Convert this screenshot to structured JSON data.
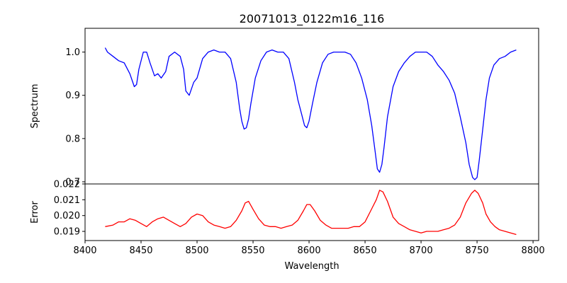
{
  "title": "20071013_0122m16_116",
  "xlabel": "Wavelength",
  "colors": {
    "spectrum": "#0000ff",
    "error": "#ff0000",
    "axes": "#000000",
    "background": "#ffffff"
  },
  "chart_data": [
    {
      "type": "line",
      "panel": "top",
      "title": "20071013_0122m16_116",
      "xlabel": "",
      "ylabel": "Spectrum",
      "xlim": [
        8400,
        8805
      ],
      "ylim": [
        0.695,
        1.055
      ],
      "yticks": [
        0.7,
        0.8,
        0.9,
        1.0
      ],
      "ytick_labels": [
        "0.7",
        "0.8",
        "0.9",
        "1.0"
      ],
      "grid": false,
      "series": [
        {
          "color": "#0000ff",
          "x": [
            8418,
            8420,
            8425,
            8430,
            8435,
            8440,
            8444,
            8446,
            8448,
            8452,
            8455,
            8458,
            8462,
            8465,
            8468,
            8472,
            8475,
            8480,
            8485,
            8488,
            8490,
            8493,
            8497,
            8500,
            8505,
            8510,
            8515,
            8520,
            8525,
            8530,
            8535,
            8538,
            8540,
            8542,
            8544,
            8546,
            8548,
            8552,
            8557,
            8562,
            8567,
            8572,
            8577,
            8582,
            8587,
            8590,
            8593,
            8596,
            8598,
            8600,
            8603,
            8607,
            8612,
            8617,
            8622,
            8627,
            8632,
            8637,
            8642,
            8647,
            8652,
            8656,
            8659,
            8661,
            8663,
            8665,
            8667,
            8670,
            8675,
            8680,
            8685,
            8690,
            8695,
            8700,
            8705,
            8710,
            8715,
            8720,
            8725,
            8730,
            8735,
            8740,
            8743,
            8746,
            8748,
            8750,
            8752,
            8755,
            8758,
            8761,
            8765,
            8770,
            8775,
            8780,
            8785
          ],
          "y": [
            1.01,
            1.0,
            0.99,
            0.98,
            0.975,
            0.95,
            0.92,
            0.925,
            0.96,
            1.0,
            1.0,
            0.975,
            0.945,
            0.95,
            0.94,
            0.955,
            0.99,
            1.0,
            0.99,
            0.96,
            0.91,
            0.9,
            0.93,
            0.94,
            0.985,
            1.0,
            1.005,
            1.0,
            1.0,
            0.985,
            0.93,
            0.87,
            0.84,
            0.822,
            0.825,
            0.845,
            0.88,
            0.94,
            0.98,
            1.0,
            1.005,
            1.0,
            1.0,
            0.985,
            0.93,
            0.89,
            0.86,
            0.83,
            0.825,
            0.84,
            0.88,
            0.93,
            0.975,
            0.995,
            1.0,
            1.0,
            1.0,
            0.995,
            0.975,
            0.94,
            0.89,
            0.83,
            0.77,
            0.73,
            0.722,
            0.74,
            0.78,
            0.85,
            0.92,
            0.955,
            0.975,
            0.99,
            1.0,
            1.0,
            1.0,
            0.99,
            0.97,
            0.955,
            0.935,
            0.905,
            0.85,
            0.79,
            0.74,
            0.71,
            0.705,
            0.71,
            0.75,
            0.82,
            0.89,
            0.94,
            0.97,
            0.985,
            0.99,
            1.0,
            1.005
          ]
        }
      ]
    },
    {
      "type": "line",
      "panel": "bottom",
      "title": "",
      "xlabel": "Wavelength",
      "ylabel": "Error",
      "xlim": [
        8400,
        8805
      ],
      "ylim": [
        0.01842,
        0.022
      ],
      "yticks": [
        0.019,
        0.02,
        0.021,
        0.022
      ],
      "ytick_labels": [
        "0.019",
        "0.020",
        "0.021",
        "0.022"
      ],
      "xticks": [
        8400,
        8450,
        8500,
        8550,
        8600,
        8650,
        8700,
        8750,
        8800
      ],
      "xtick_labels": [
        "8400",
        "8450",
        "8500",
        "8550",
        "8600",
        "8650",
        "8700",
        "8750",
        "8800"
      ],
      "grid": false,
      "series": [
        {
          "color": "#ff0000",
          "x": [
            8418,
            8425,
            8430,
            8435,
            8440,
            8445,
            8450,
            8455,
            8460,
            8465,
            8470,
            8475,
            8480,
            8485,
            8490,
            8495,
            8500,
            8505,
            8510,
            8515,
            8520,
            8525,
            8530,
            8535,
            8540,
            8543,
            8546,
            8550,
            8555,
            8560,
            8565,
            8570,
            8575,
            8580,
            8585,
            8590,
            8595,
            8598,
            8601,
            8605,
            8610,
            8615,
            8620,
            8625,
            8630,
            8635,
            8640,
            8645,
            8650,
            8655,
            8660,
            8663,
            8666,
            8670,
            8675,
            8680,
            8685,
            8690,
            8695,
            8700,
            8705,
            8710,
            8715,
            8720,
            8725,
            8730,
            8735,
            8740,
            8745,
            8748,
            8751,
            8755,
            8758,
            8762,
            8766,
            8770,
            8775,
            8780,
            8785
          ],
          "y": [
            0.0193,
            0.0194,
            0.0196,
            0.0196,
            0.0198,
            0.0197,
            0.0195,
            0.0193,
            0.0196,
            0.0198,
            0.0199,
            0.0197,
            0.0195,
            0.0193,
            0.0195,
            0.0199,
            0.0201,
            0.02,
            0.0196,
            0.0194,
            0.0193,
            0.0192,
            0.0193,
            0.0197,
            0.0203,
            0.0208,
            0.0209,
            0.0204,
            0.0198,
            0.0194,
            0.0193,
            0.0193,
            0.0192,
            0.0193,
            0.0194,
            0.0197,
            0.0203,
            0.0207,
            0.0207,
            0.0203,
            0.0197,
            0.0194,
            0.0192,
            0.0192,
            0.0192,
            0.0192,
            0.0193,
            0.0193,
            0.0196,
            0.0203,
            0.021,
            0.0216,
            0.0215,
            0.0209,
            0.0199,
            0.0195,
            0.0193,
            0.0191,
            0.019,
            0.0189,
            0.019,
            0.019,
            0.019,
            0.0191,
            0.0192,
            0.0194,
            0.0199,
            0.0208,
            0.0214,
            0.0216,
            0.0214,
            0.0208,
            0.0201,
            0.0196,
            0.0193,
            0.0191,
            0.019,
            0.0189,
            0.0188
          ]
        }
      ]
    }
  ]
}
